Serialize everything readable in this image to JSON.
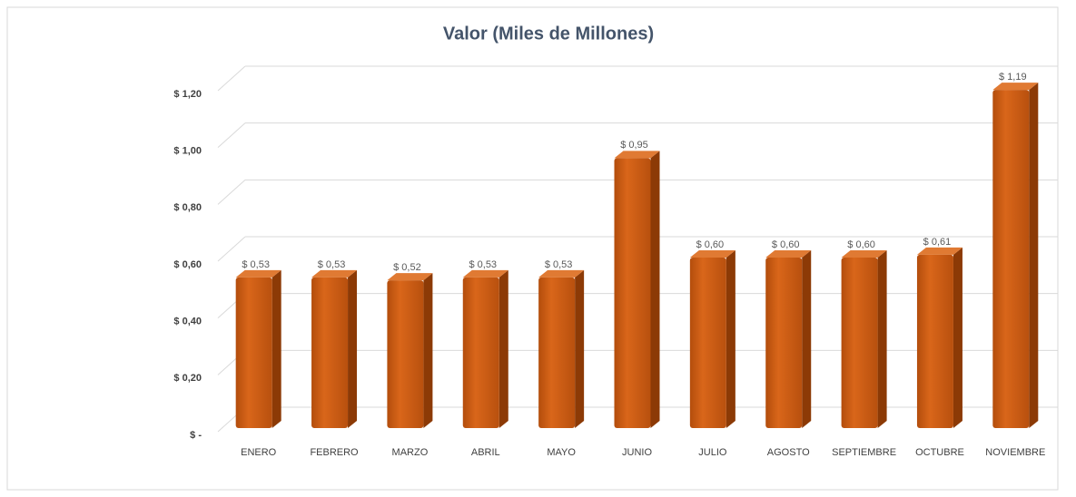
{
  "chart_data": {
    "type": "bar3d",
    "title": "Valor (Miles de Millones)",
    "categories": [
      "ENERO",
      "FEBRERO",
      "MARZO",
      "ABRIL",
      "MAYO",
      "JUNIO",
      "JULIO",
      "AGOSTO",
      "SEPTIEMBRE",
      "OCTUBRE",
      "NOVIEMBRE"
    ],
    "values": [
      0.53,
      0.53,
      0.52,
      0.53,
      0.53,
      0.95,
      0.6,
      0.6,
      0.6,
      0.61,
      1.19
    ],
    "value_labels": [
      "$ 0,53",
      "$ 0,53",
      "$ 0,52",
      "$ 0,53",
      "$ 0,53",
      "$ 0,95",
      "$ 0,60",
      "$ 0,60",
      "$ 0,60",
      "$ 0,61",
      "$ 1,19"
    ],
    "color": "#c55a11",
    "ylim": [
      0,
      1.2
    ],
    "yticks": [
      {
        "value": 0,
        "label": "$ -"
      },
      {
        "value": 0.2,
        "label": "$ 0,20"
      },
      {
        "value": 0.4,
        "label": "$ 0,40"
      },
      {
        "value": 0.6,
        "label": "$ 0,60"
      },
      {
        "value": 0.8,
        "label": "$ 0,80"
      },
      {
        "value": 1.0,
        "label": "$ 1,00"
      },
      {
        "value": 1.2,
        "label": "$ 1,20"
      }
    ],
    "grid": true
  }
}
